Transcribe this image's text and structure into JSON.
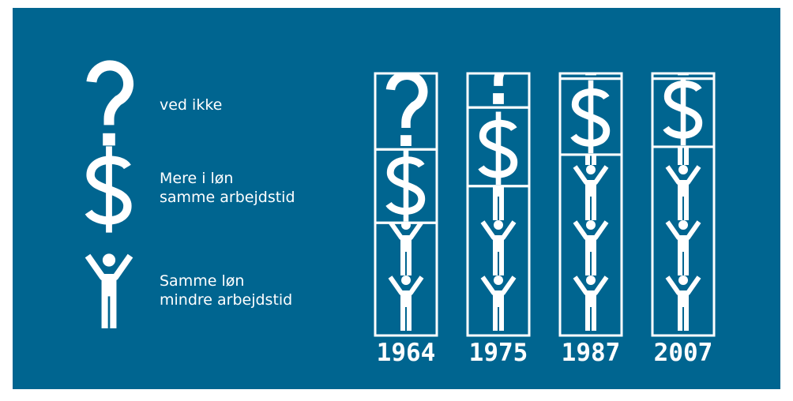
{
  "chart_data": {
    "type": "stacked-icon-column",
    "categories": [
      "1964",
      "1975",
      "1987",
      "2007"
    ],
    "series": [
      {
        "name": "ved ikke",
        "color": "#ffffff",
        "values": [
          29,
          13,
          2,
          2
        ]
      },
      {
        "name": "Mere i løn\nsamme arbejdstid",
        "color": "#ffffff",
        "values": [
          28,
          30,
          29,
          26
        ]
      },
      {
        "name": "Samme løn\nmindre arbejdstid",
        "color": "#ffffff",
        "values": [
          43,
          57,
          69,
          72
        ]
      }
    ]
  }
}
